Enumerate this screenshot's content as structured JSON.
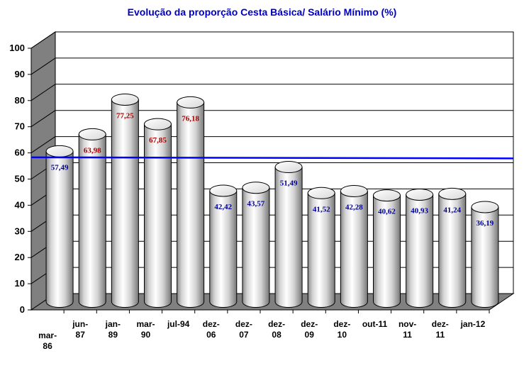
{
  "chart_data": {
    "type": "bar",
    "title": "Evolução da proporção Cesta Básica/ Salário Mínimo (%)",
    "categories": [
      [
        "mar-",
        "86"
      ],
      [
        "jun-",
        "87"
      ],
      [
        "jan-",
        "89"
      ],
      [
        "mar-",
        "90"
      ],
      [
        "jul-94"
      ],
      [
        "dez-",
        "06"
      ],
      [
        "dez-",
        "07"
      ],
      [
        "dez-",
        "08"
      ],
      [
        "dez-",
        "09"
      ],
      [
        "dez-",
        "10"
      ],
      [
        "out-11"
      ],
      [
        "nov-",
        "11"
      ],
      [
        "dez-",
        "11"
      ],
      [
        "jan-12"
      ]
    ],
    "values": [
      57.49,
      63.98,
      77.25,
      67.85,
      76.18,
      42.42,
      43.57,
      51.49,
      41.52,
      42.28,
      40.62,
      40.93,
      41.24,
      36.19
    ],
    "data_labels": [
      "57,49",
      "63,98",
      "77,25",
      "67,85",
      "76,18",
      "42,42",
      "43,57",
      "51,49",
      "41,52",
      "42,28",
      "40,62",
      "40,93",
      "41,24",
      "36,19"
    ],
    "ylim": [
      0,
      100
    ],
    "yticks": [
      0,
      10,
      20,
      30,
      40,
      50,
      60,
      70,
      80,
      90,
      100
    ],
    "reference_line": 57.49,
    "grid": true,
    "style": "3d-cylinder",
    "colors": {
      "title": "#0000c0",
      "reference_line": "#0000ff",
      "label_high": "#aa0000",
      "label_low": "#000099",
      "floor": "#808080",
      "side_wall": "#808080",
      "plot_background": "#ffffff",
      "gridline": "#000000"
    }
  }
}
